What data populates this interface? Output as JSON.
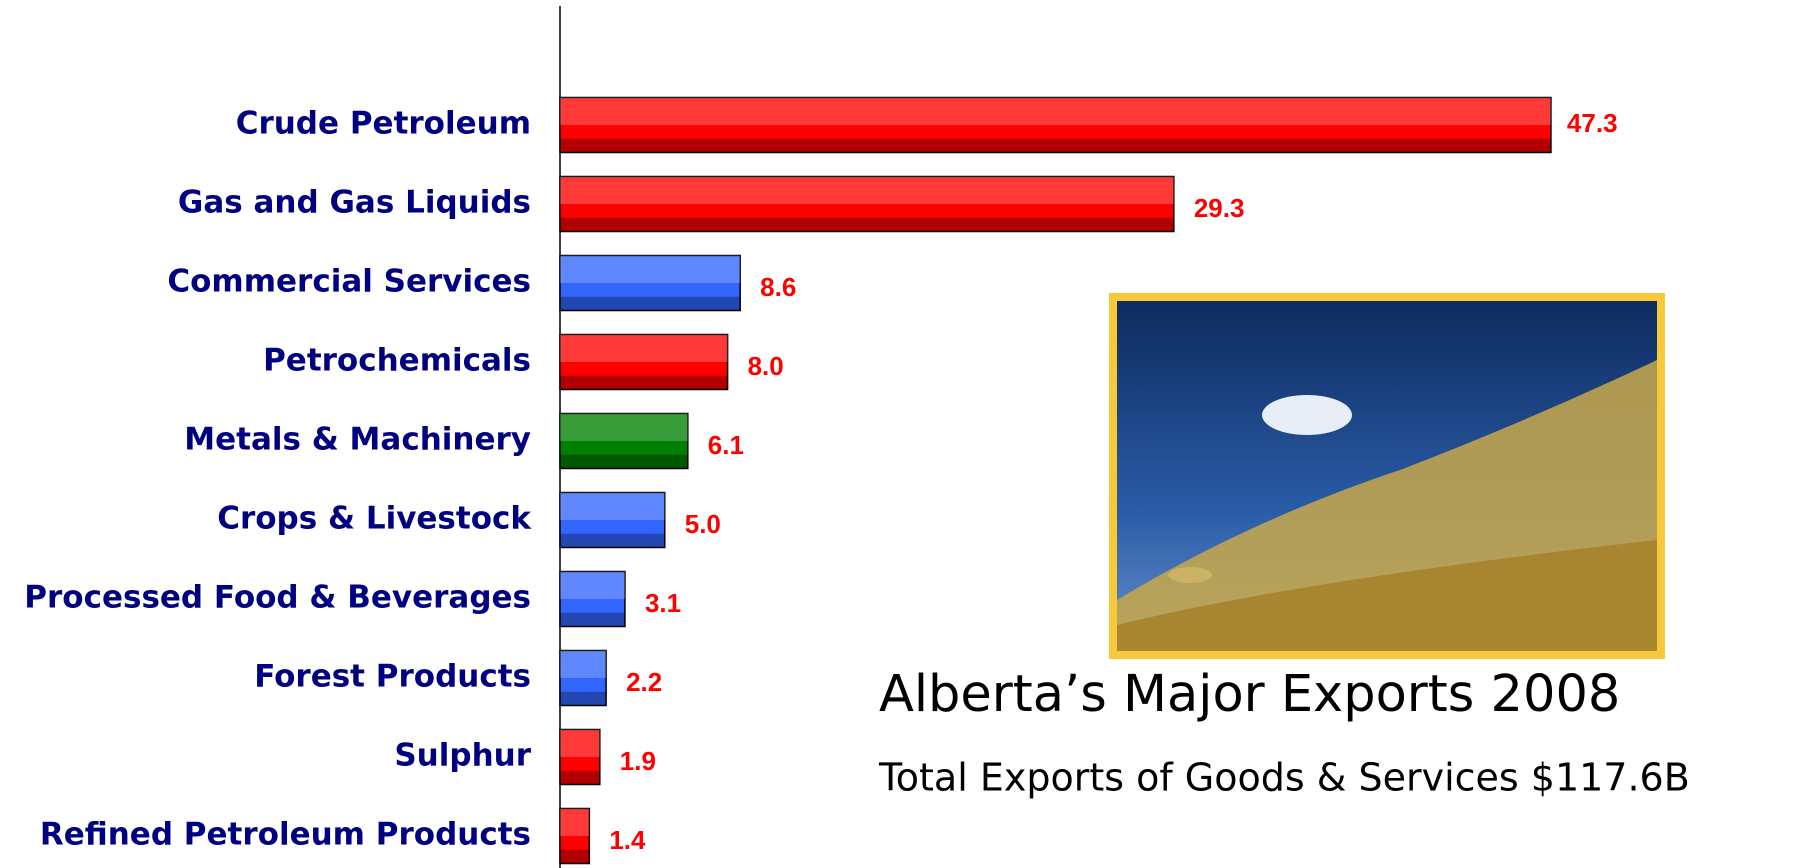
{
  "chart_data": {
    "type": "bar",
    "orientation": "horizontal",
    "title": "Alberta’s Major Exports 2008",
    "subtitle": "Total Exports of Goods & Services $117.6B",
    "categories": [
      "Crude Petroleum",
      "Gas and Gas Liquids",
      "Commercial Services",
      "Petrochemicals",
      "Metals & Machinery",
      "Crops & Livestock",
      "Processed Food & Beverages",
      "Forest Products",
      "Sulphur",
      "Refined Petroleum Products"
    ],
    "values": [
      47.3,
      29.3,
      8.6,
      8.0,
      6.1,
      5.0,
      3.1,
      2.2,
      1.9,
      1.4
    ],
    "value_labels": [
      "47.3",
      "29.3",
      "8.6",
      "8.0",
      "6.1",
      "5.0",
      "3.1",
      "2.2",
      "1.9",
      "1.4"
    ],
    "colors": [
      "#ff0000",
      "#ff0000",
      "#3366ff",
      "#ff0000",
      "#008000",
      "#3366ff",
      "#3366ff",
      "#3366ff",
      "#ff0000",
      "#ff0000"
    ],
    "xlim": [
      0,
      60
    ]
  }
}
